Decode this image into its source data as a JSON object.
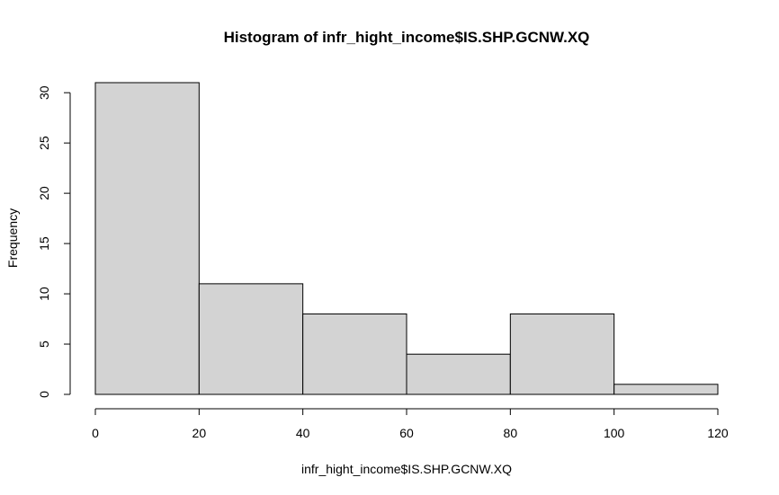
{
  "chart_data": {
    "type": "bar",
    "title": "Histogram of infr_hight_income$IS.SHP.GCNW.XQ",
    "xlabel": "infr_hight_income$IS.SHP.GCNW.XQ",
    "ylabel": "Frequency",
    "bins": [
      {
        "start": 0,
        "end": 20,
        "count": 31
      },
      {
        "start": 20,
        "end": 40,
        "count": 11
      },
      {
        "start": 40,
        "end": 60,
        "count": 8
      },
      {
        "start": 60,
        "end": 80,
        "count": 4
      },
      {
        "start": 80,
        "end": 100,
        "count": 8
      },
      {
        "start": 100,
        "end": 120,
        "count": 1
      }
    ],
    "x_ticks": [
      0,
      20,
      40,
      60,
      80,
      100,
      120
    ],
    "y_ticks": [
      0,
      5,
      10,
      15,
      20,
      25,
      30
    ],
    "xlim": [
      0,
      120
    ],
    "ylim": [
      0,
      31
    ],
    "grid": false,
    "bar_color": "#d3d3d3",
    "edge_color": "#000000"
  }
}
